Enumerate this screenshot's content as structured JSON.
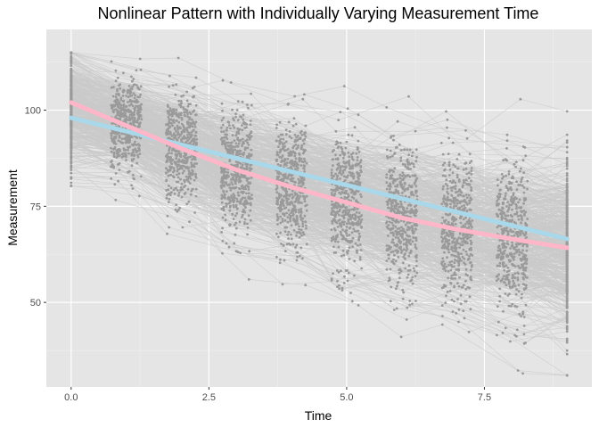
{
  "chart_data": {
    "type": "line",
    "title": "Nonlinear Pattern with Individually Varying Measurement Time",
    "xlabel": "Time",
    "ylabel": "Measurement",
    "xlim": [
      -0.45,
      9.45
    ],
    "ylim": [
      28,
      121
    ],
    "x_ticks": [
      {
        "value": 0,
        "label": "0.0"
      },
      {
        "value": 2.5,
        "label": "2.5"
      },
      {
        "value": 5,
        "label": "5.0"
      },
      {
        "value": 7.5,
        "label": "7.5"
      }
    ],
    "y_ticks": [
      {
        "value": 50,
        "label": "50"
      },
      {
        "value": 75,
        "label": "75"
      },
      {
        "value": 100,
        "label": "100"
      }
    ],
    "grid": true,
    "background": "#e5e5e5",
    "colors": {
      "trajectories": "#c9c9c9",
      "points": "#9a9a9a",
      "smooth_curve": "#ffb6c8",
      "linear_fit": "#a8d8ea"
    },
    "measurement_occasions": [
      {
        "time_center": 0,
        "time_spread": 0,
        "y_mean": 100,
        "y_sd": 7
      },
      {
        "time_center": 1,
        "time_spread": 0.28,
        "y_mean": 96,
        "y_sd": 6
      },
      {
        "time_center": 2,
        "time_spread": 0.28,
        "y_mean": 90,
        "y_sd": 7
      },
      {
        "time_center": 3,
        "time_spread": 0.28,
        "y_mean": 84,
        "y_sd": 8
      },
      {
        "time_center": 4,
        "time_spread": 0.28,
        "y_mean": 80,
        "y_sd": 8.5
      },
      {
        "time_center": 5,
        "time_spread": 0.28,
        "y_mean": 76,
        "y_sd": 9
      },
      {
        "time_center": 6,
        "time_spread": 0.28,
        "y_mean": 72,
        "y_sd": 9.5
      },
      {
        "time_center": 7,
        "time_spread": 0.28,
        "y_mean": 69,
        "y_sd": 10
      },
      {
        "time_center": 8,
        "time_spread": 0.28,
        "y_mean": 66,
        "y_sd": 10.5
      },
      {
        "time_center": 9,
        "time_spread": 0,
        "y_mean": 64,
        "y_sd": 11
      }
    ],
    "individuals": 500,
    "series": [
      {
        "type": "smooth",
        "x": [
          0,
          1,
          2,
          3,
          4,
          5,
          6,
          7,
          8,
          9
        ],
        "values": [
          102,
          96,
          90,
          84.5,
          80,
          76,
          72,
          69,
          66.5,
          64.2
        ]
      },
      {
        "type": "linear",
        "x": [
          0,
          9
        ],
        "values": [
          98,
          66.5
        ]
      }
    ]
  }
}
